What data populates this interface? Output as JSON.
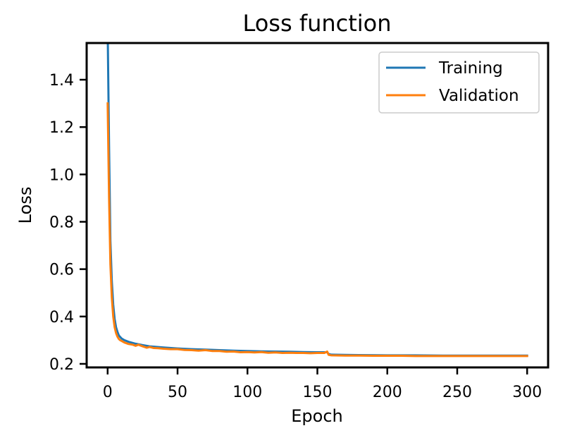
{
  "chart_data": {
    "type": "line",
    "title": "Loss function",
    "xlabel": "Epoch",
    "ylabel": "Loss",
    "xlim": [
      -15,
      315
    ],
    "ylim": [
      0.185,
      1.555
    ],
    "xticks": [
      0,
      50,
      100,
      150,
      200,
      250,
      300
    ],
    "yticks": [
      0.2,
      0.4,
      0.6,
      0.8,
      1.0,
      1.2,
      1.4
    ],
    "ytick_labels": [
      "0.2",
      "0.4",
      "0.6",
      "0.8",
      "1.0",
      "1.2",
      "1.4"
    ],
    "grid": false,
    "legend_position": "top-right",
    "series": [
      {
        "name": "Training",
        "color": "#1f77b4",
        "x": [
          0,
          1,
          2,
          3,
          4,
          5,
          6,
          7,
          8,
          10,
          12,
          15,
          20,
          25,
          30,
          40,
          50,
          60,
          70,
          80,
          90,
          100,
          110,
          120,
          130,
          140,
          150,
          157,
          158,
          160,
          170,
          180,
          200,
          220,
          240,
          260,
          280,
          300
        ],
        "y": [
          1.62,
          1.12,
          0.72,
          0.55,
          0.45,
          0.39,
          0.355,
          0.335,
          0.32,
          0.307,
          0.3,
          0.293,
          0.285,
          0.279,
          0.274,
          0.269,
          0.265,
          0.262,
          0.26,
          0.258,
          0.256,
          0.254,
          0.253,
          0.252,
          0.251,
          0.25,
          0.249,
          0.249,
          0.242,
          0.239,
          0.238,
          0.237,
          0.236,
          0.236,
          0.235,
          0.235,
          0.235,
          0.235
        ]
      },
      {
        "name": "Validation",
        "color": "#ff7f0e",
        "x": [
          0,
          1,
          2,
          3,
          4,
          5,
          6,
          7,
          8,
          9,
          10,
          12,
          15,
          18,
          20,
          22,
          25,
          28,
          30,
          33,
          36,
          40,
          45,
          50,
          55,
          60,
          65,
          70,
          75,
          80,
          85,
          90,
          95,
          100,
          105,
          110,
          115,
          120,
          125,
          130,
          135,
          140,
          145,
          150,
          155,
          157,
          158,
          160,
          170,
          180,
          190,
          200,
          210,
          220,
          230,
          240,
          250,
          260,
          270,
          280,
          290,
          300
        ],
        "y": [
          1.3,
          0.9,
          0.62,
          0.48,
          0.4,
          0.355,
          0.33,
          0.315,
          0.305,
          0.3,
          0.297,
          0.29,
          0.284,
          0.281,
          0.276,
          0.281,
          0.274,
          0.268,
          0.271,
          0.267,
          0.266,
          0.264,
          0.262,
          0.262,
          0.259,
          0.258,
          0.256,
          0.258,
          0.254,
          0.254,
          0.251,
          0.252,
          0.249,
          0.25,
          0.248,
          0.25,
          0.247,
          0.248,
          0.246,
          0.247,
          0.246,
          0.246,
          0.245,
          0.246,
          0.246,
          0.252,
          0.238,
          0.236,
          0.235,
          0.235,
          0.234,
          0.234,
          0.234,
          0.233,
          0.233,
          0.233,
          0.233,
          0.233,
          0.233,
          0.233,
          0.233,
          0.233
        ]
      }
    ]
  }
}
